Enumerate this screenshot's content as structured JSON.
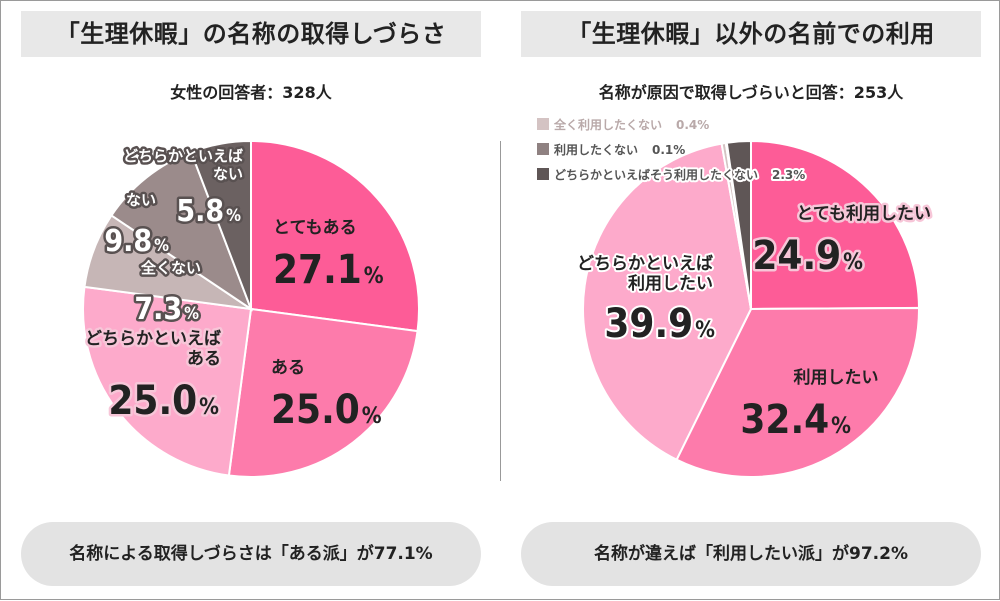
{
  "left": {
    "title": "「生理休暇」の名称の取得しづらさ",
    "subtitle": "女性の回答者：328人",
    "summary": "名称による取得しづらさは「ある派」が77.1%"
  },
  "right": {
    "title": "「生理休暇」以外の名前での利用",
    "subtitle": "名称が原因で取得しづらいと回答：253人",
    "summary": "名称が違えば「利用したい派」が97.2%"
  },
  "chart_data": [
    {
      "type": "pie",
      "title": "「生理休暇」の名称の取得しづらさ",
      "start_angle_deg": 0,
      "direction": "clockwise",
      "slices": [
        {
          "label": "とてもある",
          "value": 27.1,
          "display": "27.1",
          "color": "#fd5c97"
        },
        {
          "label": "ある",
          "value": 25.0,
          "display": "25.0",
          "color": "#fd7bab"
        },
        {
          "label": "どちらかといえば ある",
          "value": 25.0,
          "display": "25.0",
          "color": "#fdaacb"
        },
        {
          "label": "全くない",
          "value": 7.3,
          "display": "7.3",
          "color": "#c6b6b6"
        },
        {
          "label": "ない",
          "value": 9.8,
          "display": "9.8",
          "color": "#9b8b8b"
        },
        {
          "label": "どちらかといえば ない",
          "value": 5.8,
          "display": "5.8",
          "color": "#6b6161"
        }
      ],
      "unit": "%"
    },
    {
      "type": "pie",
      "title": "「生理休暇」以外の名前での利用",
      "start_angle_deg": 0,
      "direction": "clockwise",
      "slices": [
        {
          "label": "とても利用したい",
          "value": 24.9,
          "display": "24.9",
          "color": "#fd5c97"
        },
        {
          "label": "利用したい",
          "value": 32.4,
          "display": "32.4",
          "color": "#fd7bab"
        },
        {
          "label": "どちらかといえば 利用したい",
          "value": 39.9,
          "display": "39.9",
          "color": "#fdaacb"
        },
        {
          "label": "全く利用したくない",
          "value": 0.4,
          "display": "0.4%",
          "color": "#d4c3c3"
        },
        {
          "label": "利用したくない",
          "value": 0.1,
          "display": "0.1%",
          "color": "#8f8181"
        },
        {
          "label": "どちらかといえばそう利用したくない",
          "value": 2.3,
          "display": "2.3%",
          "color": "#5f5656"
        }
      ],
      "unit": "%"
    }
  ]
}
